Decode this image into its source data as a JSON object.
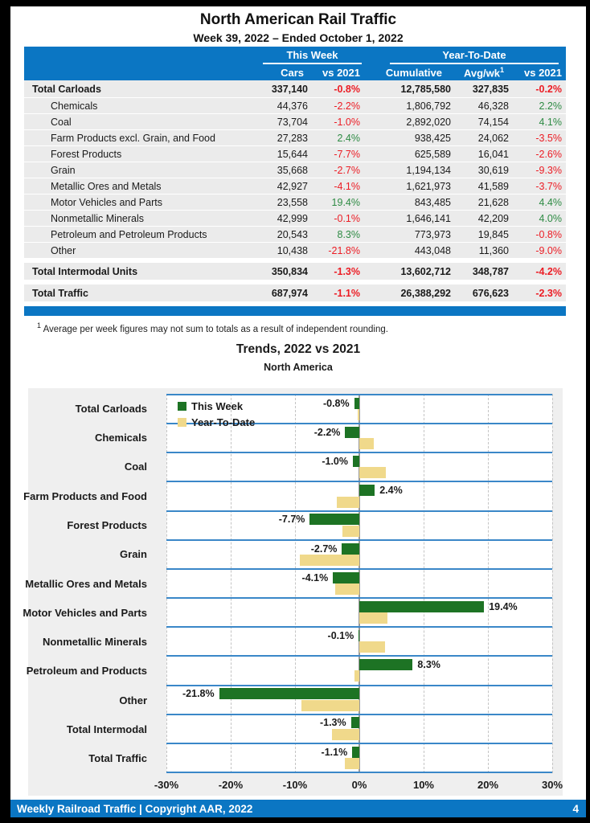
{
  "page": {
    "title": "North American Rail Traffic",
    "subtitle": "Week 39, 2022 – Ended October 1, 2022",
    "footnote_sup": "1",
    "footnote": "Average per week figures may not sum to totals as a result of independent rounding.",
    "footer": {
      "left": "Weekly Railroad Traffic | Copyright AAR, 2022",
      "page_number": "4"
    }
  },
  "table": {
    "header": {
      "this_week": "This Week",
      "year_to_date": "Year-To-Date",
      "cars": "Cars",
      "vs2021": "vs 2021",
      "cumulative": "Cumulative",
      "avg_wk": "Avg/wk",
      "avg_wk_sup": "1"
    },
    "rows": [
      {
        "label": "Total Carloads",
        "bold": true,
        "gap": false,
        "cars": "337,140",
        "tw_vs": "-0.8%",
        "cumulative": "12,785,580",
        "avg_wk": "327,835",
        "ytd_vs": "-0.2%"
      },
      {
        "label": "Chemicals",
        "bold": false,
        "gap": false,
        "cars": "44,376",
        "tw_vs": "-2.2%",
        "cumulative": "1,806,792",
        "avg_wk": "46,328",
        "ytd_vs": "2.2%"
      },
      {
        "label": "Coal",
        "bold": false,
        "gap": false,
        "cars": "73,704",
        "tw_vs": "-1.0%",
        "cumulative": "2,892,020",
        "avg_wk": "74,154",
        "ytd_vs": "4.1%"
      },
      {
        "label": "Farm Products excl. Grain, and Food",
        "bold": false,
        "gap": false,
        "cars": "27,283",
        "tw_vs": "2.4%",
        "cumulative": "938,425",
        "avg_wk": "24,062",
        "ytd_vs": "-3.5%"
      },
      {
        "label": "Forest Products",
        "bold": false,
        "gap": false,
        "cars": "15,644",
        "tw_vs": "-7.7%",
        "cumulative": "625,589",
        "avg_wk": "16,041",
        "ytd_vs": "-2.6%"
      },
      {
        "label": "Grain",
        "bold": false,
        "gap": false,
        "cars": "35,668",
        "tw_vs": "-2.7%",
        "cumulative": "1,194,134",
        "avg_wk": "30,619",
        "ytd_vs": "-9.3%"
      },
      {
        "label": "Metallic Ores and Metals",
        "bold": false,
        "gap": false,
        "cars": "42,927",
        "tw_vs": "-4.1%",
        "cumulative": "1,621,973",
        "avg_wk": "41,589",
        "ytd_vs": "-3.7%"
      },
      {
        "label": "Motor Vehicles and Parts",
        "bold": false,
        "gap": false,
        "cars": "23,558",
        "tw_vs": "19.4%",
        "cumulative": "843,485",
        "avg_wk": "21,628",
        "ytd_vs": "4.4%"
      },
      {
        "label": "Nonmetallic Minerals",
        "bold": false,
        "gap": false,
        "cars": "42,999",
        "tw_vs": "-0.1%",
        "cumulative": "1,646,141",
        "avg_wk": "42,209",
        "ytd_vs": "4.0%"
      },
      {
        "label": "Petroleum and Petroleum Products",
        "bold": false,
        "gap": false,
        "cars": "20,543",
        "tw_vs": "8.3%",
        "cumulative": "773,973",
        "avg_wk": "19,845",
        "ytd_vs": "-0.8%"
      },
      {
        "label": "Other",
        "bold": false,
        "gap": false,
        "cars": "10,438",
        "tw_vs": "-21.8%",
        "cumulative": "443,048",
        "avg_wk": "11,360",
        "ytd_vs": "-9.0%"
      },
      {
        "label": "Total Intermodal Units",
        "bold": true,
        "gap": true,
        "cars": "350,834",
        "tw_vs": "-1.3%",
        "cumulative": "13,602,712",
        "avg_wk": "348,787",
        "ytd_vs": "-4.2%"
      },
      {
        "label": "Total Traffic",
        "bold": true,
        "gap": true,
        "cars": "687,974",
        "tw_vs": "-1.1%",
        "cumulative": "26,388,292",
        "avg_wk": "676,623",
        "ytd_vs": "-2.3%"
      }
    ]
  },
  "chart_data": {
    "type": "bar",
    "orientation": "horizontal",
    "title": "Trends, 2022 vs 2021",
    "subtitle": "North America",
    "categories": [
      "Total Carloads",
      "Chemicals",
      "Coal",
      "Farm Products and Food",
      "Forest Products",
      "Grain",
      "Metallic Ores and Metals",
      "Motor Vehicles and Parts",
      "Nonmetallic Minerals",
      "Petroleum and Products",
      "Other",
      "Total Intermodal",
      "Total Traffic"
    ],
    "series": [
      {
        "name": "This Week",
        "color": "#1d7324",
        "values": [
          -0.8,
          -2.2,
          -1.0,
          2.4,
          -7.7,
          -2.7,
          -4.1,
          19.4,
          -0.1,
          8.3,
          -21.8,
          -1.3,
          -1.1
        ]
      },
      {
        "name": "Year-To-Date",
        "color": "#f0d98b",
        "values": [
          -0.2,
          2.2,
          4.1,
          -3.5,
          -2.6,
          -9.3,
          -3.7,
          4.4,
          4.0,
          -0.8,
          -9.0,
          -4.2,
          -2.3
        ]
      }
    ],
    "data_labels_series": "This Week",
    "data_label_format": "{value}%",
    "xlim": [
      -30,
      30
    ],
    "x_ticks": [
      "-30%",
      "-20%",
      "-10%",
      "0%",
      "10%",
      "20%",
      "30%"
    ],
    "grid": "vertical-dashed",
    "legend_position": "inside-top-left"
  },
  "colors": {
    "header_blue": "#0b76c3",
    "separator_blue": "#3a87c8",
    "row_gray": "#ebebeb",
    "panel_gray": "#efefef",
    "positive_green": "#2e8b44",
    "negative_red": "#ec1c24",
    "bar_green": "#1d7324",
    "bar_khaki": "#f0d98b",
    "zero_line_gray": "#9a9a9a"
  }
}
